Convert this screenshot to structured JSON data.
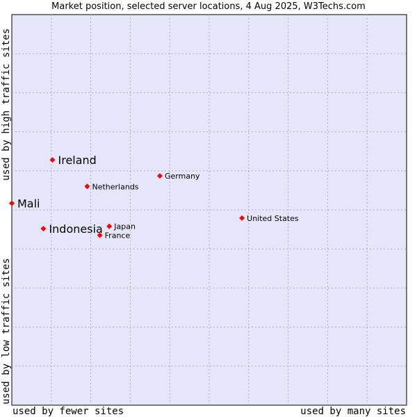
{
  "chart_data": {
    "type": "scatter",
    "title": "Market position, selected server locations, 4 Aug 2025, W3Techs.com",
    "xlabel_low": "used by fewer sites",
    "xlabel_high": "used by many sites",
    "ylabel_low": "used by low traffic sites",
    "ylabel_high": "used by high traffic sites",
    "xlim": [
      0,
      100
    ],
    "ylim": [
      0,
      100
    ],
    "grid": true,
    "background": "#e6e6fa",
    "grid_color": "#aaaacc",
    "marker_color": "#ff0000",
    "points": [
      {
        "name": "Ireland",
        "x": 10.3,
        "y": 62.8,
        "highlight": true
      },
      {
        "name": "Mali",
        "x": 0.0,
        "y": 51.7,
        "highlight": true
      },
      {
        "name": "Indonesia",
        "x": 8.0,
        "y": 45.2,
        "highlight": true
      },
      {
        "name": "Germany",
        "x": 37.5,
        "y": 58.7,
        "highlight": false
      },
      {
        "name": "Netherlands",
        "x": 19.1,
        "y": 56.0,
        "highlight": false
      },
      {
        "name": "United States",
        "x": 58.3,
        "y": 47.9,
        "highlight": false
      },
      {
        "name": "Japan",
        "x": 24.7,
        "y": 45.8,
        "highlight": false
      },
      {
        "name": "France",
        "x": 22.3,
        "y": 43.5,
        "highlight": false
      }
    ]
  }
}
